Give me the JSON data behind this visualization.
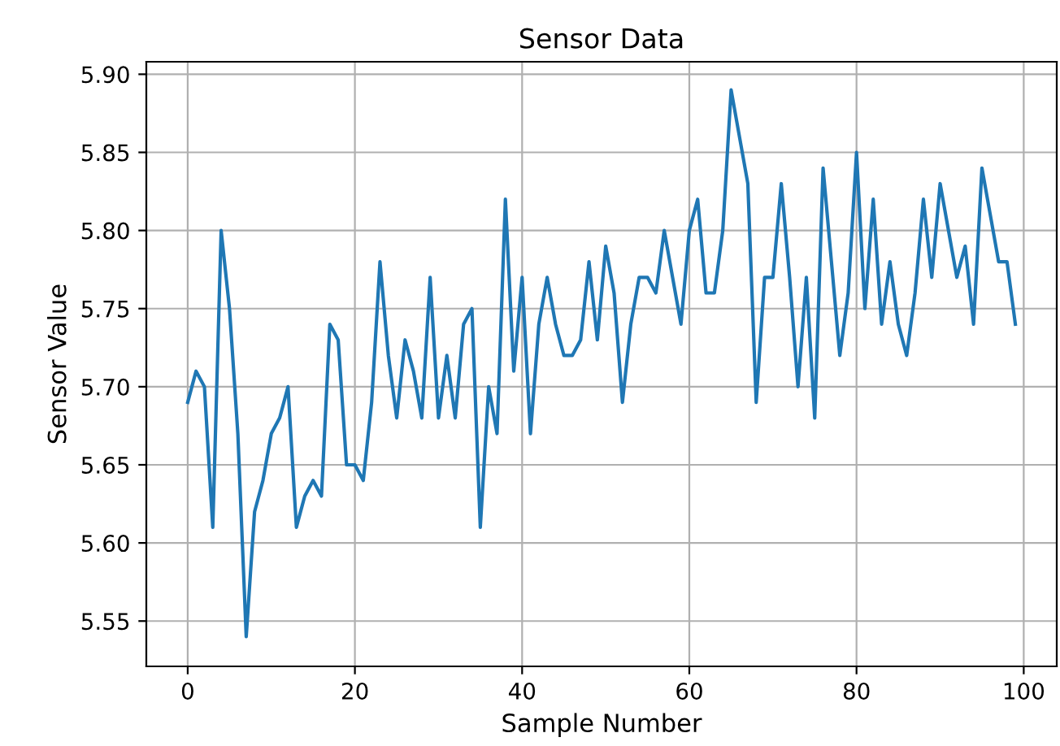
{
  "chart_data": {
    "type": "line",
    "title": "Sensor Data",
    "xlabel": "Sample Number",
    "ylabel": "Sensor Value",
    "x": [
      0,
      1,
      2,
      3,
      4,
      5,
      6,
      7,
      8,
      9,
      10,
      11,
      12,
      13,
      14,
      15,
      16,
      17,
      18,
      19,
      20,
      21,
      22,
      23,
      24,
      25,
      26,
      27,
      28,
      29,
      30,
      31,
      32,
      33,
      34,
      35,
      36,
      37,
      38,
      39,
      40,
      41,
      42,
      43,
      44,
      45,
      46,
      47,
      48,
      49,
      50,
      51,
      52,
      53,
      54,
      55,
      56,
      57,
      58,
      59,
      60,
      61,
      62,
      63,
      64,
      65,
      66,
      67,
      68,
      69,
      70,
      71,
      72,
      73,
      74,
      75,
      76,
      77,
      78,
      79,
      80,
      81,
      82,
      83,
      84,
      85,
      86,
      87,
      88,
      89,
      90,
      91,
      92,
      93,
      94,
      95,
      96,
      97,
      98,
      99
    ],
    "series": [
      {
        "color": "#1f77b4",
        "values": [
          5.69,
          5.71,
          5.7,
          5.61,
          5.8,
          5.75,
          5.67,
          5.54,
          5.62,
          5.64,
          5.67,
          5.68,
          5.7,
          5.61,
          5.63,
          5.64,
          5.63,
          5.74,
          5.73,
          5.65,
          5.65,
          5.64,
          5.69,
          5.78,
          5.72,
          5.68,
          5.73,
          5.71,
          5.68,
          5.77,
          5.68,
          5.72,
          5.68,
          5.74,
          5.75,
          5.61,
          5.7,
          5.67,
          5.82,
          5.71,
          5.77,
          5.67,
          5.74,
          5.77,
          5.74,
          5.72,
          5.72,
          5.73,
          5.78,
          5.73,
          5.79,
          5.76,
          5.69,
          5.74,
          5.77,
          5.77,
          5.76,
          5.8,
          5.77,
          5.74,
          5.8,
          5.82,
          5.76,
          5.76,
          5.8,
          5.89,
          5.86,
          5.83,
          5.69,
          5.77,
          5.77,
          5.83,
          5.77,
          5.7,
          5.77,
          5.68,
          5.84,
          5.78,
          5.72,
          5.76,
          5.85,
          5.75,
          5.82,
          5.74,
          5.78,
          5.74,
          5.72,
          5.76,
          5.82,
          5.77,
          5.83,
          5.8,
          5.77,
          5.79,
          5.74,
          5.84,
          5.81,
          5.78,
          5.78,
          5.74
        ]
      }
    ],
    "xlim": [
      -4.95,
      103.95
    ],
    "xticks": [
      0,
      20,
      40,
      60,
      80,
      100
    ],
    "ylim": [
      5.521,
      5.908
    ],
    "yticks": [
      {
        "value": 5.55,
        "label": "5.55"
      },
      {
        "value": 5.6,
        "label": "5.60"
      },
      {
        "value": 5.65,
        "label": "5.65"
      },
      {
        "value": 5.7,
        "label": "5.70"
      },
      {
        "value": 5.75,
        "label": "5.75"
      },
      {
        "value": 5.8,
        "label": "5.80"
      },
      {
        "value": 5.85,
        "label": "5.85"
      },
      {
        "value": 5.9,
        "label": "5.90"
      }
    ],
    "grid": true,
    "marker": "none",
    "line_style": "solid"
  }
}
